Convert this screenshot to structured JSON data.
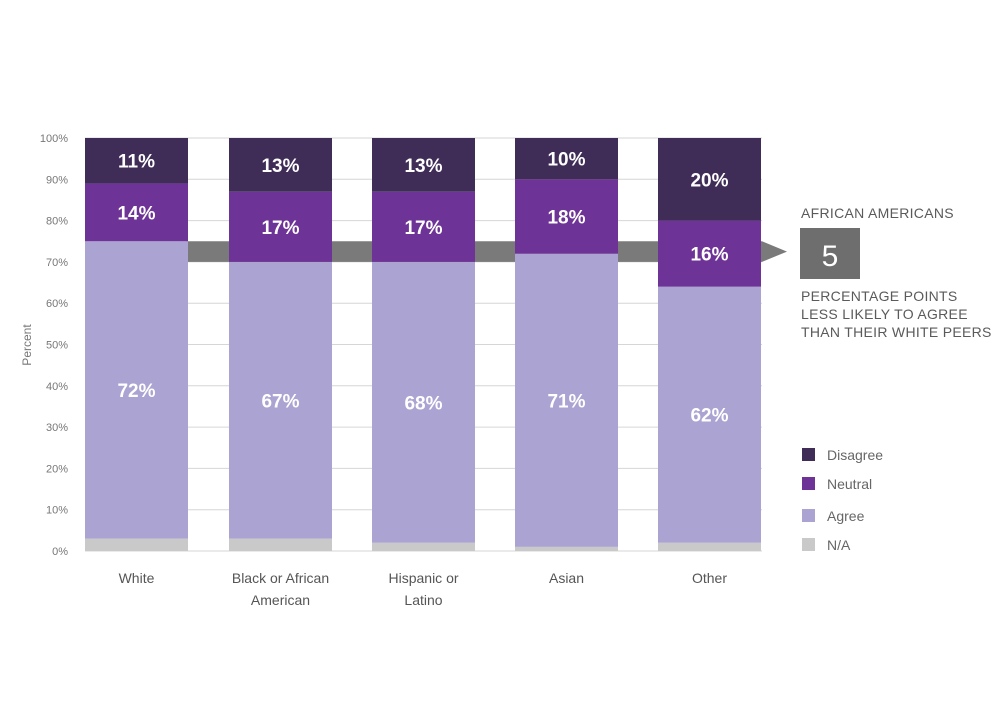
{
  "chart_data": {
    "type": "bar",
    "stacked": true,
    "ylabel": "Percent",
    "ylim": [
      0,
      100
    ],
    "yticks": [
      "0%",
      "10%",
      "20%",
      "30%",
      "40%",
      "50%",
      "60%",
      "70%",
      "80%",
      "90%",
      "100%"
    ],
    "grid": true,
    "categories": [
      [
        "White"
      ],
      [
        "Black or African",
        "American"
      ],
      [
        "Hispanic or",
        "Latino"
      ],
      [
        "Asian"
      ],
      [
        "Other"
      ]
    ],
    "series": [
      {
        "name": "N/A",
        "color": "#c9c9c9",
        "values": [
          3,
          3,
          2,
          1,
          2
        ],
        "labels": [
          "",
          "",
          "",
          "",
          ""
        ]
      },
      {
        "name": "Agree",
        "color": "#aba3d2",
        "values": [
          72,
          67,
          68,
          71,
          62
        ],
        "labels": [
          "72%",
          "67%",
          "68%",
          "71%",
          "62%"
        ]
      },
      {
        "name": "Neutral",
        "color": "#6e3396",
        "values": [
          14,
          17,
          17,
          18,
          16
        ],
        "labels": [
          "14%",
          "17%",
          "17%",
          "18%",
          "16%"
        ]
      },
      {
        "name": "Disagree",
        "color": "#3f2d58",
        "values": [
          11,
          13,
          13,
          10,
          20
        ],
        "labels": [
          "11%",
          "13%",
          "13%",
          "10%",
          "20%"
        ]
      }
    ],
    "legend": {
      "placement": "right",
      "order": [
        "Disagree",
        "Neutral",
        "Agree",
        "N/A"
      ]
    },
    "annotation": {
      "heading": "AFRICAN AMERICANS",
      "value": "5",
      "text": [
        "PERCENTAGE POINTS",
        "LESS LIKELY TO AGREE",
        "THAN THEIR WHITE PEERS"
      ],
      "arrow_color": "#7a7a7a",
      "box_color": "#6e6e6e"
    }
  }
}
